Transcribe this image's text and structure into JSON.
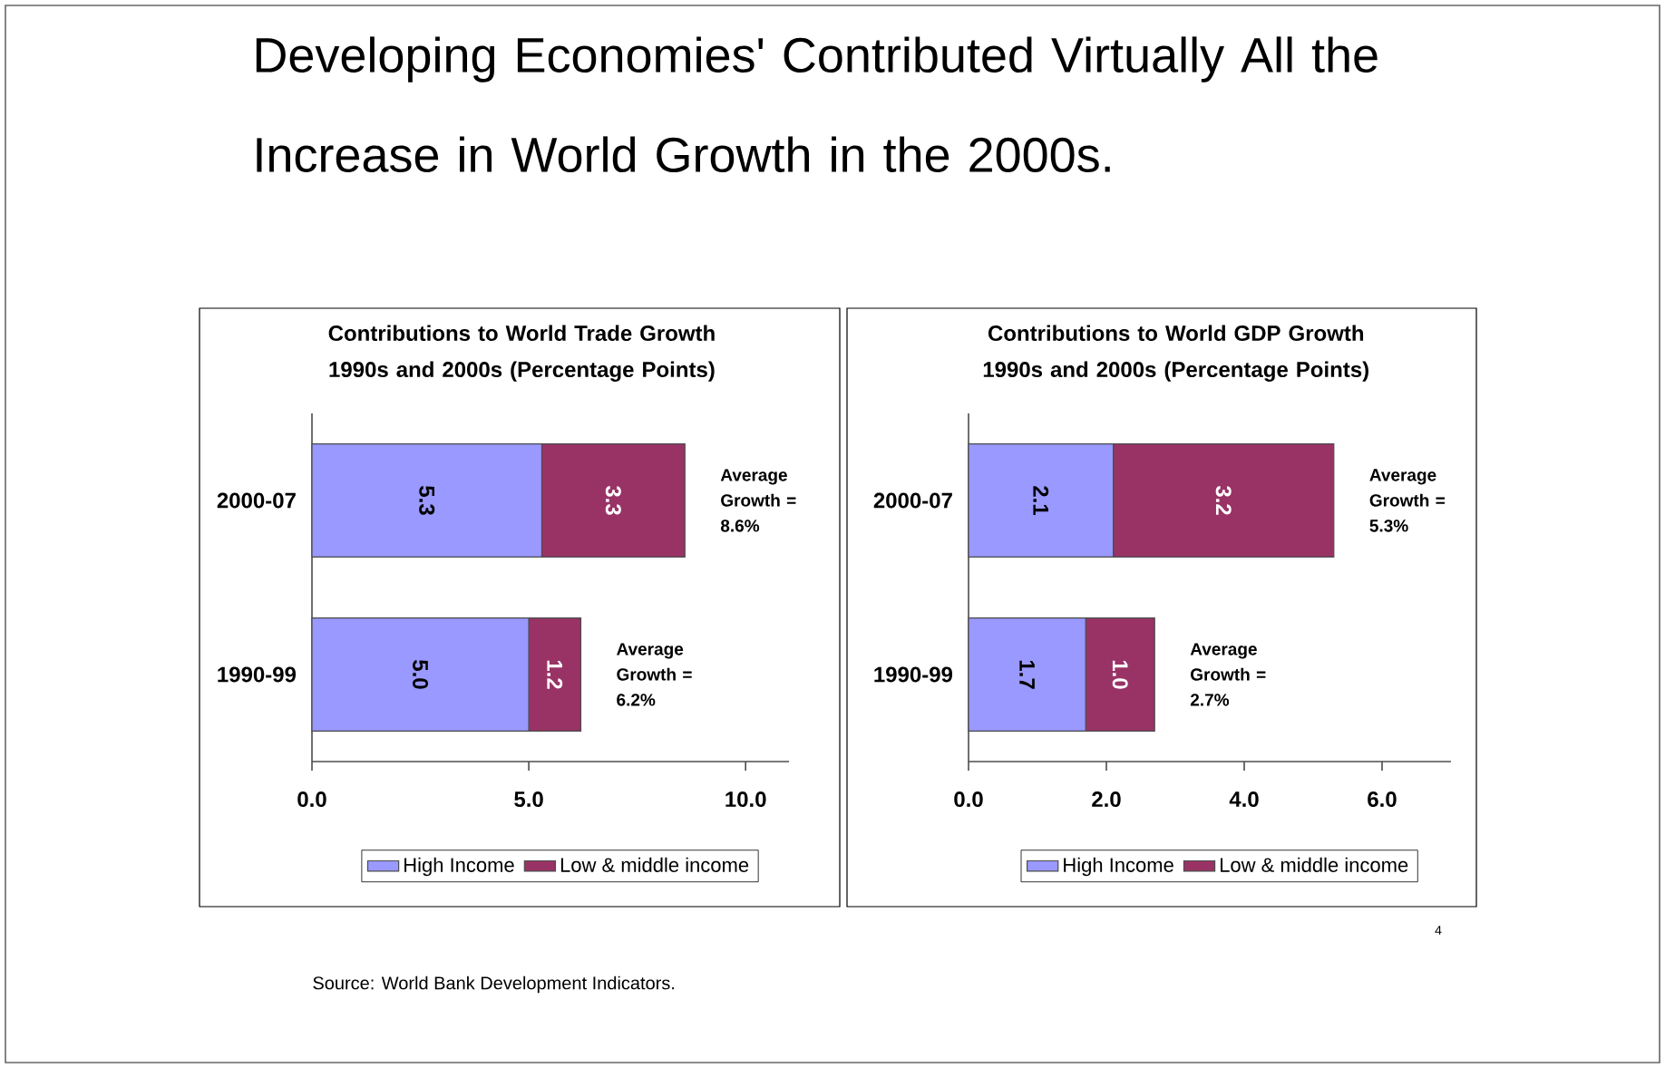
{
  "chart_data": [
    {
      "type": "bar",
      "orientation": "horizontal",
      "stacked": true,
      "title": "Contributions to World Trade Growth 1990s and 2000s (Percentage Points)",
      "categories": [
        "2000-07",
        "1990-99"
      ],
      "series": [
        {
          "name": "High Income",
          "color": "#9999ff",
          "values": [
            5.3,
            5.0
          ],
          "value_labels": [
            "5.3",
            "5.0"
          ]
        },
        {
          "name": "Low & middle income",
          "color": "#993366",
          "values": [
            3.3,
            1.2
          ],
          "value_labels": [
            "3.3",
            "1.2"
          ]
        }
      ],
      "xlim": [
        0,
        11
      ],
      "xticks": [
        {
          "value": 0,
          "label": "0.0"
        },
        {
          "value": 5,
          "label": "5.0"
        },
        {
          "value": 10,
          "label": "10.0"
        }
      ],
      "legend": "bottom",
      "annotations": [
        "Developing Economies' Contributed Virtually All the Increase in World Growth in the 2000s.",
        {
          "text": "Average Growth = 8.6%",
          "x": 8.6,
          "y": "2000-07"
        },
        {
          "text": "Average Growth = 6.2%",
          "x": 6.2,
          "y": "1990-99"
        }
      ]
    },
    {
      "type": "bar",
      "orientation": "horizontal",
      "stacked": true,
      "title": "Contributions to World GDP Growth 1990s and 2000s (Percentage Points)",
      "categories": [
        "2000-07",
        "1990-99"
      ],
      "series": [
        {
          "name": "High Income",
          "color": "#9999ff",
          "values": [
            2.1,
            1.7
          ],
          "value_labels": [
            "2.1",
            "1.7"
          ]
        },
        {
          "name": "Low & middle income",
          "color": "#993366",
          "values": [
            3.2,
            1.0
          ],
          "value_labels": [
            "3.2",
            "1.0"
          ]
        }
      ],
      "xlim": [
        0,
        7
      ],
      "xticks": [
        {
          "value": 0,
          "label": "0.0"
        },
        {
          "value": 2,
          "label": "2.0"
        },
        {
          "value": 4,
          "label": "4.0"
        },
        {
          "value": 6,
          "label": "6.0"
        }
      ],
      "legend": "bottom",
      "annotations": [
        {
          "text": "Average Growth = 5.3%",
          "x": 5.3,
          "y": "2000-07"
        },
        {
          "text": "Average Growth = 2.7%",
          "x": 2.7,
          "y": "1990-99"
        },
        "Source: World Bank Development Indicators.",
        "4"
      ]
    }
  ]
}
